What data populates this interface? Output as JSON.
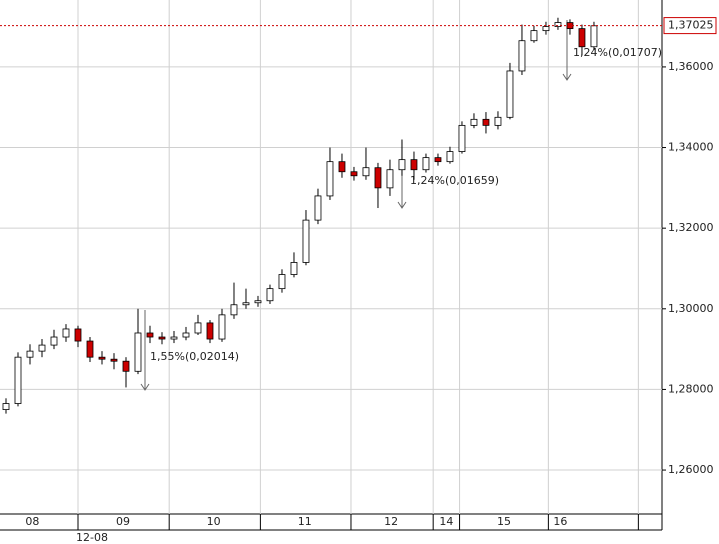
{
  "chart_data": {
    "type": "candlestick",
    "x": [
      0,
      1,
      2,
      3,
      4,
      5,
      6,
      7,
      8,
      9,
      10,
      11,
      12,
      13,
      14,
      15,
      16,
      17,
      18,
      19,
      20,
      21,
      22,
      23,
      24,
      25,
      26,
      27,
      28,
      29,
      30,
      31,
      32,
      33,
      34,
      35,
      36,
      37,
      38,
      39,
      40,
      41,
      42,
      43,
      44,
      45,
      46,
      47,
      48,
      49
    ],
    "open": [
      1.275,
      1.2765,
      1.288,
      1.2895,
      1.291,
      1.293,
      1.295,
      1.292,
      1.288,
      1.2875,
      1.287,
      1.2845,
      1.294,
      1.293,
      1.2925,
      1.293,
      1.294,
      1.2965,
      1.2925,
      1.2985,
      1.301,
      1.3015,
      1.302,
      1.305,
      1.3085,
      1.3115,
      1.322,
      1.328,
      1.3365,
      1.334,
      1.333,
      1.335,
      1.33,
      1.3345,
      1.337,
      1.3345,
      1.3375,
      1.3365,
      1.339,
      1.3455,
      1.347,
      1.3455,
      1.3475,
      1.359,
      1.3665,
      1.369,
      1.37,
      1.371,
      1.3695,
      1.365
    ],
    "high": [
      1.2778,
      1.2892,
      1.2912,
      1.2925,
      1.2948,
      1.2962,
      1.2958,
      1.293,
      1.2895,
      1.289,
      1.288,
      1.3,
      1.2958,
      1.2942,
      1.2945,
      1.2955,
      1.2985,
      1.2972,
      1.3,
      1.3065,
      1.305,
      1.3032,
      1.306,
      1.3098,
      1.314,
      1.3245,
      1.3298,
      1.34,
      1.3385,
      1.3352,
      1.34,
      1.3362,
      1.337,
      1.342,
      1.339,
      1.3385,
      1.3385,
      1.3402,
      1.3465,
      1.3485,
      1.3488,
      1.349,
      1.361,
      1.3705,
      1.3702,
      1.3712,
      1.3722,
      1.3718,
      1.3705,
      1.3712
    ],
    "low": [
      1.274,
      1.2758,
      1.2862,
      1.288,
      1.29,
      1.2918,
      1.2905,
      1.2868,
      1.2862,
      1.285,
      1.2805,
      1.2838,
      1.2915,
      1.2912,
      1.2915,
      1.2922,
      1.2935,
      1.2915,
      1.2918,
      1.2975,
      1.3,
      1.3005,
      1.3012,
      1.304,
      1.3078,
      1.3108,
      1.321,
      1.327,
      1.3325,
      1.3318,
      1.332,
      1.325,
      1.328,
      1.333,
      1.332,
      1.3338,
      1.3355,
      1.336,
      1.3385,
      1.3448,
      1.3435,
      1.3445,
      1.347,
      1.358,
      1.366,
      1.368,
      1.3692,
      1.368,
      1.363,
      1.3642
    ],
    "close": [
      1.2765,
      1.288,
      1.2895,
      1.291,
      1.293,
      1.295,
      1.292,
      1.288,
      1.2875,
      1.287,
      1.2845,
      1.294,
      1.293,
      1.2925,
      1.293,
      1.294,
      1.2965,
      1.2925,
      1.2985,
      1.301,
      1.3015,
      1.302,
      1.305,
      1.3085,
      1.3115,
      1.322,
      1.328,
      1.3365,
      1.334,
      1.333,
      1.335,
      1.33,
      1.3345,
      1.337,
      1.3345,
      1.3375,
      1.3365,
      1.339,
      1.3455,
      1.347,
      1.3455,
      1.3475,
      1.359,
      1.3665,
      1.369,
      1.37,
      1.371,
      1.3695,
      1.365,
      1.3702
    ],
    "up_color": "#ffffff",
    "down_color": "#cc0000",
    "xlim": [
      -0.5,
      54.67
    ],
    "xticks": [
      {
        "value": 2.2,
        "label": "08"
      },
      {
        "value": 9.75,
        "label": "09"
      },
      {
        "value": 17.3,
        "label": "10"
      },
      {
        "value": 24.9,
        "label": "11"
      },
      {
        "value": 32.1,
        "label": "12"
      },
      {
        "value": 36.7,
        "label": "14"
      },
      {
        "value": 41.5,
        "label": "15"
      },
      {
        "value": 46.2,
        "label": "16"
      }
    ],
    "xgrid": [
      6,
      13.6,
      21.2,
      28.75,
      35.6,
      37.8,
      45.2,
      52.7
    ],
    "period_label": "12-08",
    "ylim": [
      1.2491,
      1.3766
    ],
    "yticks": [
      {
        "value": 1.26,
        "label": "1,26000"
      },
      {
        "value": 1.28,
        "label": "1,28000"
      },
      {
        "value": 1.3,
        "label": "1,30000"
      },
      {
        "value": 1.32,
        "label": "1,32000"
      },
      {
        "value": 1.34,
        "label": "1,34000"
      },
      {
        "value": 1.36,
        "label": "1,36000"
      }
    ],
    "last_price": {
      "value": 1.37025,
      "label": "1,37025"
    },
    "annotations": [
      "1,55%(0,02014)",
      "1,24%(0,01659)",
      "1,24%(0,01707)"
    ],
    "grid": true
  }
}
